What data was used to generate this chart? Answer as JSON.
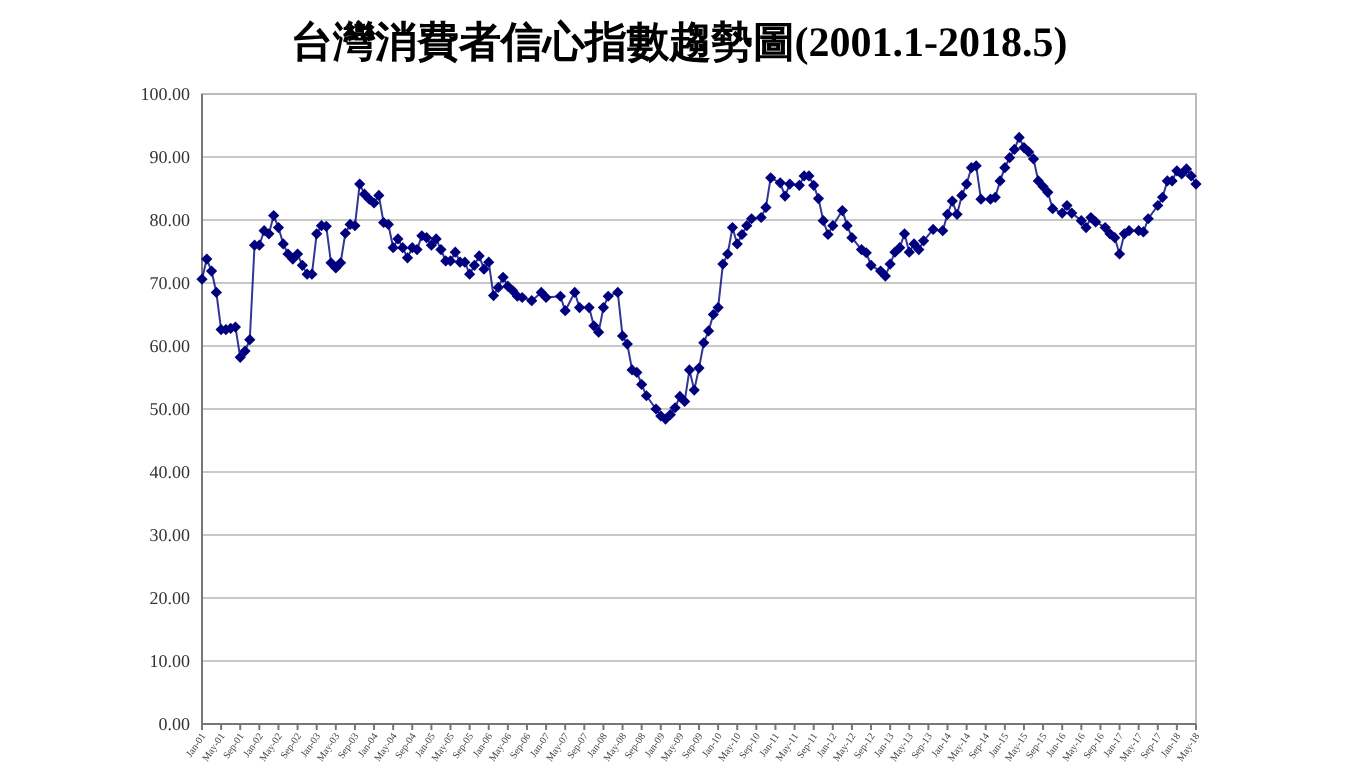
{
  "chart_data": {
    "type": "line",
    "title": "台灣消費者信心指數趨勢圖(2001.1-2018.5)",
    "series": [
      {
        "color": "#00007f",
        "marker": "diamond",
        "line_style": "solid",
        "x": [
          "2001-01",
          "2001-02",
          "2001-03",
          "2001-04",
          "2001-05",
          "2001-06",
          "2001-07",
          "2001-08",
          "2001-09",
          "2001-10",
          "2001-11",
          "2001-12",
          "2002-01",
          "2002-02",
          "2002-03",
          "2002-04",
          "2002-05",
          "2002-06",
          "2002-07",
          "2002-08",
          "2002-09",
          "2002-10",
          "2002-11",
          "2002-12",
          "2003-01",
          "2003-02",
          "2003-03",
          "2003-04",
          "2003-05",
          "2003-06",
          "2003-07",
          "2003-08",
          "2003-09",
          "2003-10",
          "2003-11",
          "2003-12",
          "2004-01",
          "2004-02",
          "2004-03",
          "2004-04",
          "2004-05",
          "2004-06",
          "2004-07",
          "2004-08",
          "2004-09",
          "2004-10",
          "2004-11",
          "2004-12",
          "2005-01",
          "2005-02",
          "2005-03",
          "2005-04",
          "2005-05",
          "2005-06",
          "2005-07",
          "2005-08",
          "2005-09",
          "2005-10",
          "2005-11",
          "2005-12",
          "2006-01",
          "2006-02",
          "2006-03",
          "2006-04",
          "2006-05",
          "2006-06",
          "2006-07",
          "2006-08",
          "2006-10",
          "2006-12",
          "2007-01",
          "2007-04",
          "2007-05",
          "2007-07",
          "2007-08",
          "2007-10",
          "2007-11",
          "2007-12",
          "2008-01",
          "2008-02",
          "2008-04",
          "2008-05",
          "2008-06",
          "2008-07",
          "2008-08",
          "2008-09",
          "2008-10",
          "2008-12",
          "2009-01",
          "2009-02",
          "2009-03",
          "2009-04",
          "2009-05",
          "2009-06",
          "2009-07",
          "2009-08",
          "2009-09",
          "2009-10",
          "2009-11",
          "2009-12",
          "2010-01",
          "2010-02",
          "2010-03",
          "2010-04",
          "2010-05",
          "2010-06",
          "2010-07",
          "2010-08",
          "2010-10",
          "2010-11",
          "2010-12",
          "2011-02",
          "2011-03",
          "2011-04",
          "2011-06",
          "2011-07",
          "2011-08",
          "2011-09",
          "2011-10",
          "2011-11",
          "2011-12",
          "2012-01",
          "2012-03",
          "2012-04",
          "2012-05",
          "2012-07",
          "2012-08",
          "2012-09",
          "2012-11",
          "2012-12",
          "2013-01",
          "2013-02",
          "2013-03",
          "2013-04",
          "2013-05",
          "2013-06",
          "2013-07",
          "2013-08",
          "2013-10",
          "2013-12",
          "2014-01",
          "2014-02",
          "2014-03",
          "2014-04",
          "2014-05",
          "2014-06",
          "2014-07",
          "2014-08",
          "2014-10",
          "2014-11",
          "2014-12",
          "2015-01",
          "2015-02",
          "2015-03",
          "2015-04",
          "2015-05",
          "2015-06",
          "2015-07",
          "2015-08",
          "2015-09",
          "2015-10",
          "2015-11",
          "2016-01",
          "2016-02",
          "2016-03",
          "2016-05",
          "2016-06",
          "2016-07",
          "2016-08",
          "2016-10",
          "2016-11",
          "2016-12",
          "2017-01",
          "2017-02",
          "2017-03",
          "2017-05",
          "2017-06",
          "2017-07",
          "2017-09",
          "2017-10",
          "2017-11",
          "2017-12",
          "2018-01",
          "2018-02",
          "2018-03",
          "2018-04",
          "2018-05"
        ],
        "values": [
          70.6,
          73.8,
          71.9,
          68.5,
          62.6,
          62.6,
          62.8,
          63.0,
          58.2,
          59.2,
          61.0,
          76.0,
          76.0,
          78.3,
          77.8,
          80.7,
          78.8,
          76.2,
          74.6,
          73.8,
          74.6,
          72.8,
          71.4,
          71.4,
          77.8,
          79.1,
          79.0,
          73.2,
          72.4,
          73.2,
          77.9,
          79.3,
          79.1,
          85.7,
          84.1,
          83.3,
          82.7,
          83.9,
          79.6,
          79.3,
          75.6,
          77.0,
          75.6,
          74.0,
          75.6,
          75.3,
          77.5,
          77.2,
          76.0,
          77.0,
          75.3,
          73.5,
          73.5,
          74.9,
          73.3,
          73.3,
          71.4,
          72.8,
          74.3,
          72.2,
          73.3,
          68.0,
          69.3,
          70.9,
          69.5,
          68.8,
          67.9,
          67.7,
          67.2,
          68.5,
          67.7,
          67.9,
          65.6,
          68.5,
          66.1,
          66.1,
          63.2,
          62.2,
          66.1,
          67.9,
          68.5,
          61.6,
          60.3,
          56.2,
          55.8,
          53.9,
          52.1,
          50.0,
          48.9,
          48.4,
          49.1,
          50.2,
          52.0,
          51.2,
          56.2,
          53.0,
          56.5,
          60.5,
          62.4,
          65.0,
          66.1,
          73.0,
          74.6,
          78.8,
          76.2,
          77.7,
          79.1,
          80.2,
          80.4,
          82.0,
          86.7,
          85.9,
          83.8,
          85.7,
          85.5,
          87.0,
          87.0,
          85.5,
          83.4,
          79.9,
          77.7,
          79.1,
          81.5,
          79.1,
          77.2,
          75.3,
          74.8,
          72.8,
          71.9,
          71.1,
          73.0,
          74.9,
          75.6,
          77.8,
          74.9,
          76.2,
          75.3,
          76.7,
          78.5,
          78.3,
          80.9,
          83.0,
          80.9,
          83.9,
          85.7,
          88.3,
          88.6,
          83.3,
          83.3,
          83.6,
          86.2,
          88.3,
          89.9,
          91.2,
          93.1,
          91.5,
          90.8,
          89.7,
          86.2,
          85.3,
          84.4,
          81.8,
          81.1,
          82.3,
          81.1,
          79.9,
          78.8,
          80.4,
          79.7,
          78.8,
          77.8,
          77.2,
          74.6,
          77.8,
          78.3,
          78.3,
          78.1,
          80.2,
          82.3,
          83.6,
          86.2,
          86.2,
          87.8,
          87.3,
          88.1,
          87.0,
          85.7
        ]
      }
    ],
    "xlim": [
      "2001-01",
      "2018-05"
    ],
    "xticks": [
      {
        "value": "2001-01",
        "label": "Jan-01"
      },
      {
        "value": "2001-05",
        "label": "May-01"
      },
      {
        "value": "2001-09",
        "label": "Sep-01"
      },
      {
        "value": "2002-01",
        "label": "Jan-02"
      },
      {
        "value": "2002-05",
        "label": "May-02"
      },
      {
        "value": "2002-09",
        "label": "Sep-02"
      },
      {
        "value": "2003-01",
        "label": "Jan-03"
      },
      {
        "value": "2003-05",
        "label": "May-03"
      },
      {
        "value": "2003-09",
        "label": "Sep-03"
      },
      {
        "value": "2004-01",
        "label": "Jan-04"
      },
      {
        "value": "2004-05",
        "label": "May-04"
      },
      {
        "value": "2004-09",
        "label": "Sep-04"
      },
      {
        "value": "2005-01",
        "label": "Jan-05"
      },
      {
        "value": "2005-05",
        "label": "May-05"
      },
      {
        "value": "2005-09",
        "label": "Sep-05"
      },
      {
        "value": "2006-01",
        "label": "Jan-06"
      },
      {
        "value": "2006-05",
        "label": "May-06"
      },
      {
        "value": "2006-09",
        "label": "Sep-06"
      },
      {
        "value": "2007-01",
        "label": "Jan-07"
      },
      {
        "value": "2007-05",
        "label": "May-07"
      },
      {
        "value": "2007-09",
        "label": "Sep-07"
      },
      {
        "value": "2008-01",
        "label": "Jan-08"
      },
      {
        "value": "2008-05",
        "label": "May-08"
      },
      {
        "value": "2008-09",
        "label": "Sep-08"
      },
      {
        "value": "2009-01",
        "label": "Jan-09"
      },
      {
        "value": "2009-05",
        "label": "May-09"
      },
      {
        "value": "2009-09",
        "label": "Sep-09"
      },
      {
        "value": "2010-01",
        "label": "Jan-10"
      },
      {
        "value": "2010-05",
        "label": "May-10"
      },
      {
        "value": "2010-09",
        "label": "Sep-10"
      },
      {
        "value": "2011-01",
        "label": "Jan-11"
      },
      {
        "value": "2011-05",
        "label": "May-11"
      },
      {
        "value": "2011-09",
        "label": "Sep-11"
      },
      {
        "value": "2012-01",
        "label": "Jan-12"
      },
      {
        "value": "2012-05",
        "label": "May-12"
      },
      {
        "value": "2012-09",
        "label": "Sep-12"
      },
      {
        "value": "2013-01",
        "label": "Jan-13"
      },
      {
        "value": "2013-05",
        "label": "May-13"
      },
      {
        "value": "2013-09",
        "label": "Sep-13"
      },
      {
        "value": "2014-01",
        "label": "Jan-14"
      },
      {
        "value": "2014-05",
        "label": "May-14"
      },
      {
        "value": "2014-09",
        "label": "Sep-14"
      },
      {
        "value": "2015-01",
        "label": "Jan-15"
      },
      {
        "value": "2015-05",
        "label": "May-15"
      },
      {
        "value": "2015-09",
        "label": "Sep-15"
      },
      {
        "value": "2016-01",
        "label": "Jan-16"
      },
      {
        "value": "2016-05",
        "label": "May-16"
      },
      {
        "value": "2016-09",
        "label": "Sep-16"
      },
      {
        "value": "2017-01",
        "label": "Jan-17"
      },
      {
        "value": "2017-05",
        "label": "May-17"
      },
      {
        "value": "2017-09",
        "label": "Sep-17"
      },
      {
        "value": "2018-01",
        "label": "Jan-18"
      },
      {
        "value": "2018-05",
        "label": "May-18"
      }
    ],
    "ylim": [
      0,
      100
    ],
    "yticks": [
      {
        "value": 0,
        "label": "0.00"
      },
      {
        "value": 10,
        "label": "10.00"
      },
      {
        "value": 20,
        "label": "20.00"
      },
      {
        "value": 30,
        "label": "30.00"
      },
      {
        "value": 40,
        "label": "40.00"
      },
      {
        "value": 50,
        "label": "50.00"
      },
      {
        "value": 60,
        "label": "60.00"
      },
      {
        "value": 70,
        "label": "70.00"
      },
      {
        "value": 80,
        "label": "80.00"
      },
      {
        "value": 90,
        "label": "90.00"
      },
      {
        "value": 100,
        "label": "100.00"
      }
    ],
    "grid": "y"
  }
}
